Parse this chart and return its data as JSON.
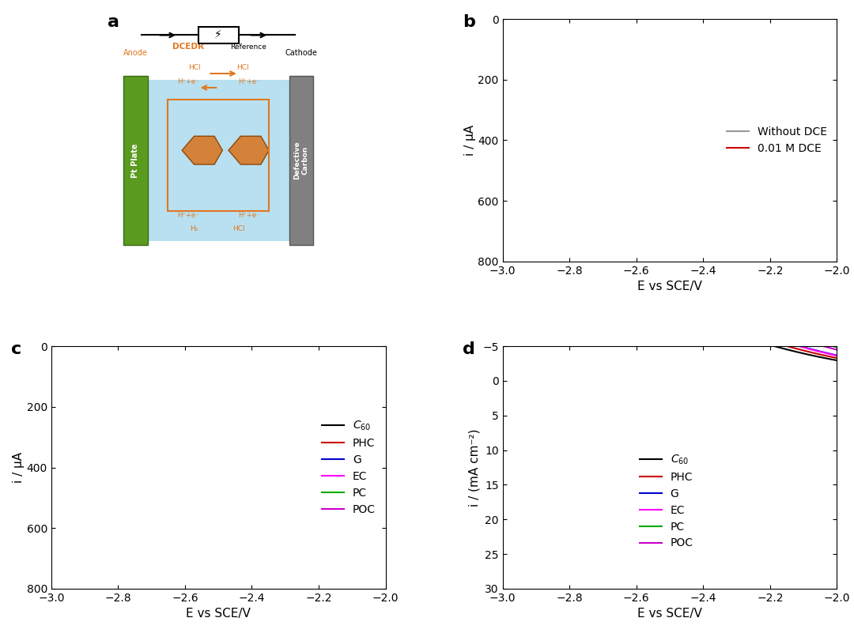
{
  "panel_b": {
    "xlabel": "E vs SCE/V",
    "ylabel": "i / μA",
    "xlim": [
      -3.0,
      -2.0
    ],
    "ylim": [
      800,
      0
    ],
    "xticks": [
      -3.0,
      -2.8,
      -2.6,
      -2.4,
      -2.2,
      -2.0
    ],
    "yticks": [
      0,
      200,
      400,
      600,
      800
    ],
    "legend": [
      "Without DCE",
      "0.01 M DCE"
    ],
    "colors": [
      "#999999",
      "#cc0000"
    ]
  },
  "panel_c": {
    "xlabel": "E vs SCE/V",
    "ylabel": "i / μA",
    "xlim": [
      -3.0,
      -2.0
    ],
    "ylim": [
      800,
      0
    ],
    "xticks": [
      -3.0,
      -2.8,
      -2.6,
      -2.4,
      -2.2,
      -2.0
    ],
    "yticks": [
      0,
      200,
      400,
      600,
      800
    ],
    "legend": [
      "C₆₀",
      "PHC",
      "G",
      "EC",
      "PC",
      "POC"
    ],
    "colors": [
      "#000000",
      "#cc0000",
      "#0000cc",
      "#ff00ff",
      "#00aa00",
      "#cc00cc"
    ]
  },
  "panel_d": {
    "xlabel": "E vs SCE/V",
    "ylabel": "i / (mA cm⁻²)",
    "xlim": [
      -3.0,
      -2.0
    ],
    "ylim": [
      30,
      -5
    ],
    "xticks": [
      -3.0,
      -2.8,
      -2.6,
      -2.4,
      -2.2,
      -2.0
    ],
    "yticks": [
      -5,
      0,
      5,
      10,
      15,
      20,
      25,
      30
    ],
    "legend": [
      "C₆₀",
      "PHC",
      "G",
      "EC",
      "PC",
      "POC"
    ],
    "colors": [
      "#000000",
      "#cc0000",
      "#0000cc",
      "#ff00ff",
      "#00aa00",
      "#cc00cc"
    ]
  }
}
